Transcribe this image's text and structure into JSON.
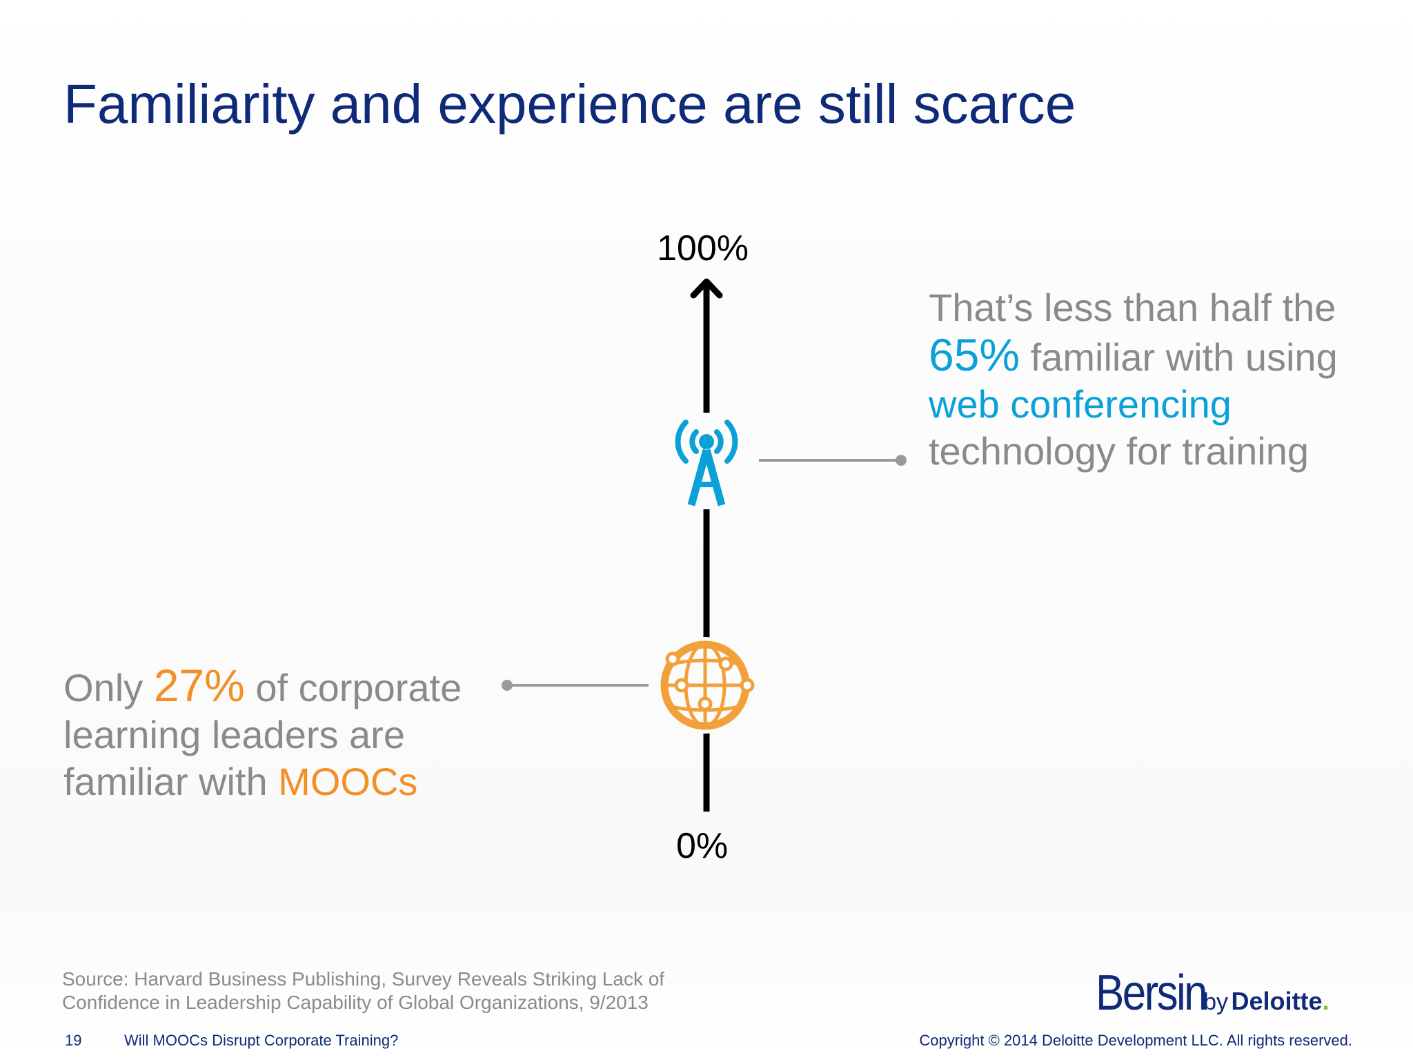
{
  "title": "Familiarity and experience are still scarce",
  "scale": {
    "top_label": "100%",
    "bottom_label": "0%",
    "markers": [
      {
        "name": "web conferencing",
        "value": 65,
        "icon": "radio-tower-icon",
        "color": "#0aa0d8"
      },
      {
        "name": "MOOCs",
        "value": 27,
        "icon": "globe-icon",
        "color": "#f28f25"
      }
    ]
  },
  "callout_right": {
    "line1": "That’s less than half the",
    "percent": "65%",
    "line2_rest": " familiar with using",
    "highlight": "web conferencing",
    "line4": "technology for training"
  },
  "callout_left": {
    "prefix": "Only ",
    "percent": "27%",
    "line1_rest": " of corporate",
    "line2": "learning leaders are",
    "line3_prefix": "familiar with ",
    "highlight": "MOOCs"
  },
  "source": {
    "line1": "Source: Harvard Business Publishing, Survey Reveals Striking Lack of",
    "line2": "Confidence in Leadership Capability of Global Organizations, 9/2013"
  },
  "footer": {
    "page_number": "19",
    "deck_title": "Will MOOCs Disrupt Corporate Training?",
    "copyright": "Copyright © 2014 Deloitte Development LLC. All rights reserved."
  },
  "logo": {
    "main": "Bersin",
    "by": "by",
    "brand": "Deloitte",
    "dot": "."
  },
  "colors": {
    "title": "#0f2a78",
    "accent_blue": "#0aa0d8",
    "accent_orange": "#f28f25",
    "muted_text": "#8a8a8a",
    "deloitte_green": "#86bc25"
  }
}
